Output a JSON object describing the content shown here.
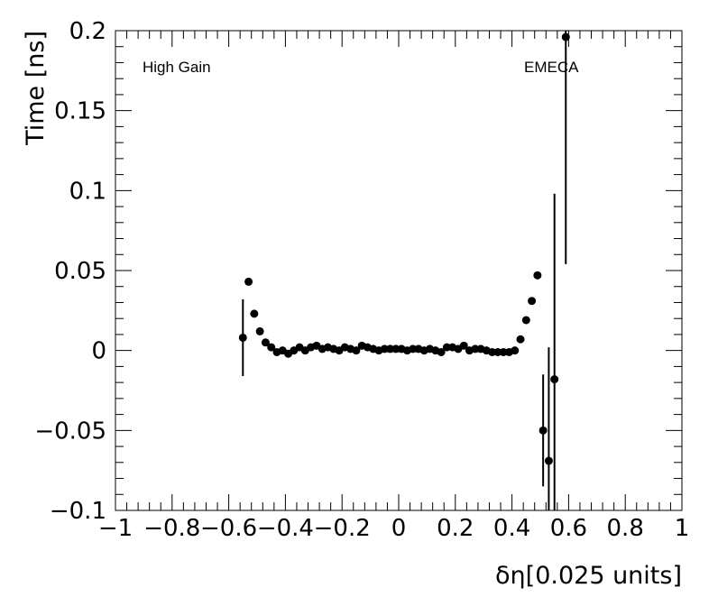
{
  "chart_data": {
    "type": "scatter",
    "title": "",
    "xlabel": "δη[0.025 units]",
    "ylabel": "Time [ns]",
    "xlim": [
      -1,
      1
    ],
    "ylim": [
      -0.1,
      0.2
    ],
    "x_ticks": [
      "−1",
      "−0.8",
      "−0.6",
      "−0.4",
      "−0.2",
      "0",
      "0.2",
      "0.4",
      "0.6",
      "0.8",
      "1"
    ],
    "y_ticks": [
      "−0.1",
      "−0.05",
      "0",
      "0.05",
      "0.1",
      "0.15",
      "0.2"
    ],
    "grid": false,
    "annotations": [
      "High Gain",
      "EMECA"
    ],
    "series": [
      {
        "marker_color": "#000000",
        "points": [
          {
            "x": -0.55,
            "y": 0.008,
            "err": 0.024
          },
          {
            "x": -0.53,
            "y": 0.043,
            "err": 0.0
          },
          {
            "x": -0.51,
            "y": 0.023,
            "err": 0.0
          },
          {
            "x": -0.49,
            "y": 0.012,
            "err": 0.0
          },
          {
            "x": -0.47,
            "y": 0.005,
            "err": 0.0
          },
          {
            "x": -0.45,
            "y": 0.002,
            "err": 0.0
          },
          {
            "x": -0.43,
            "y": -0.001,
            "err": 0.0
          },
          {
            "x": -0.41,
            "y": 0.0,
            "err": 0.0
          },
          {
            "x": -0.39,
            "y": -0.002,
            "err": 0.0
          },
          {
            "x": -0.37,
            "y": 0.0,
            "err": 0.0
          },
          {
            "x": -0.35,
            "y": 0.002,
            "err": 0.0
          },
          {
            "x": -0.33,
            "y": 0.0,
            "err": 0.0
          },
          {
            "x": -0.31,
            "y": 0.002,
            "err": 0.0
          },
          {
            "x": -0.29,
            "y": 0.003,
            "err": 0.0
          },
          {
            "x": -0.27,
            "y": 0.001,
            "err": 0.0
          },
          {
            "x": -0.25,
            "y": 0.002,
            "err": 0.0
          },
          {
            "x": -0.23,
            "y": 0.001,
            "err": 0.0
          },
          {
            "x": -0.21,
            "y": 0.0,
            "err": 0.0
          },
          {
            "x": -0.19,
            "y": 0.002,
            "err": 0.0
          },
          {
            "x": -0.17,
            "y": 0.001,
            "err": 0.0
          },
          {
            "x": -0.15,
            "y": 0.0,
            "err": 0.0
          },
          {
            "x": -0.13,
            "y": 0.003,
            "err": 0.0
          },
          {
            "x": -0.11,
            "y": 0.002,
            "err": 0.0
          },
          {
            "x": -0.09,
            "y": 0.001,
            "err": 0.0
          },
          {
            "x": -0.07,
            "y": 0.0,
            "err": 0.0
          },
          {
            "x": -0.05,
            "y": 0.001,
            "err": 0.0
          },
          {
            "x": -0.03,
            "y": 0.001,
            "err": 0.0
          },
          {
            "x": -0.01,
            "y": 0.001,
            "err": 0.0
          },
          {
            "x": 0.01,
            "y": 0.001,
            "err": 0.0
          },
          {
            "x": 0.03,
            "y": 0.0,
            "err": 0.0
          },
          {
            "x": 0.05,
            "y": 0.001,
            "err": 0.0
          },
          {
            "x": 0.07,
            "y": 0.001,
            "err": 0.0
          },
          {
            "x": 0.09,
            "y": 0.0,
            "err": 0.0
          },
          {
            "x": 0.11,
            "y": 0.001,
            "err": 0.0
          },
          {
            "x": 0.13,
            "y": 0.0,
            "err": 0.0
          },
          {
            "x": 0.15,
            "y": -0.001,
            "err": 0.0
          },
          {
            "x": 0.17,
            "y": 0.002,
            "err": 0.0
          },
          {
            "x": 0.19,
            "y": 0.002,
            "err": 0.0
          },
          {
            "x": 0.21,
            "y": 0.001,
            "err": 0.0
          },
          {
            "x": 0.23,
            "y": 0.003,
            "err": 0.0
          },
          {
            "x": 0.25,
            "y": 0.0,
            "err": 0.0
          },
          {
            "x": 0.27,
            "y": 0.001,
            "err": 0.0
          },
          {
            "x": 0.29,
            "y": 0.001,
            "err": 0.0
          },
          {
            "x": 0.31,
            "y": 0.0,
            "err": 0.0
          },
          {
            "x": 0.33,
            "y": -0.001,
            "err": 0.0
          },
          {
            "x": 0.35,
            "y": -0.001,
            "err": 0.0
          },
          {
            "x": 0.37,
            "y": -0.001,
            "err": 0.0
          },
          {
            "x": 0.39,
            "y": -0.001,
            "err": 0.0
          },
          {
            "x": 0.41,
            "y": 0.0,
            "err": 0.0
          },
          {
            "x": 0.43,
            "y": 0.007,
            "err": 0.0
          },
          {
            "x": 0.45,
            "y": 0.019,
            "err": 0.0
          },
          {
            "x": 0.47,
            "y": 0.031,
            "err": 0.0
          },
          {
            "x": 0.49,
            "y": 0.047,
            "err": 0.0
          },
          {
            "x": 0.51,
            "y": -0.05,
            "err": 0.035
          },
          {
            "x": 0.53,
            "y": -0.069,
            "err": 0.071
          },
          {
            "x": 0.55,
            "y": -0.018,
            "err": 0.116
          },
          {
            "x": 0.59,
            "y": 0.196,
            "err": 0.142
          }
        ]
      }
    ]
  }
}
